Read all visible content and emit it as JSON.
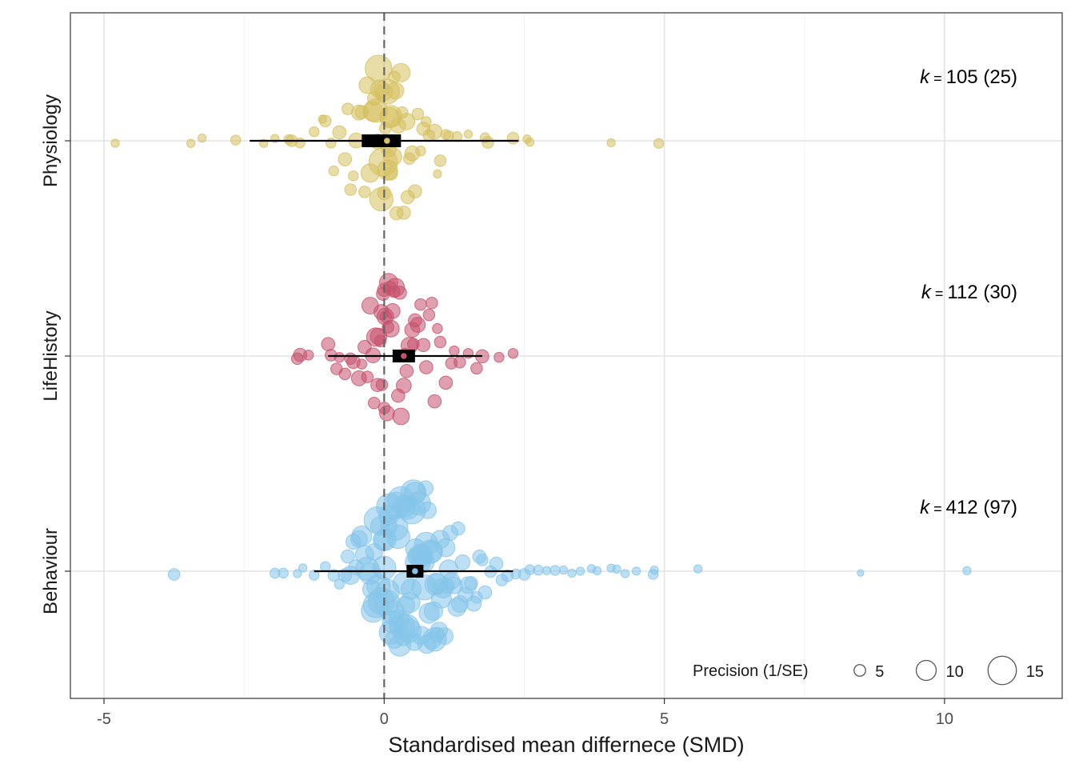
{
  "chart_data": {
    "type": "scatter",
    "subtype": "orchard-plot",
    "title": "",
    "xlabel": "Standardised mean differnece (SMD)",
    "ylabel": "",
    "xlim": [
      -5.6,
      12.1
    ],
    "x_ticks": [
      -5,
      0,
      5,
      10
    ],
    "x_tick_labels": [
      "-5",
      "0",
      "5",
      "10"
    ],
    "grid": true,
    "reference_line": {
      "x": 0,
      "style": "dashed",
      "color": "#666666"
    },
    "categories": [
      "Physiology",
      "LifeHistory",
      "Behaviour"
    ],
    "groups": [
      {
        "name": "Physiology",
        "color": "#D5BF5E",
        "k_text": "k",
        "k_eq": "=",
        "k_rest": "105",
        "k_paren": "(25)",
        "estimate": 0.05,
        "ci": [
          -0.4,
          0.3
        ],
        "pi": [
          -2.4,
          2.4
        ],
        "effects": [
          {
            "x": -4.8,
            "p": 3
          },
          {
            "x": -3.45,
            "p": 3
          },
          {
            "x": -3.25,
            "p": 3
          },
          {
            "x": -2.65,
            "p": 4
          },
          {
            "x": -2.15,
            "p": 3
          },
          {
            "x": -1.95,
            "p": 3
          },
          {
            "x": -1.7,
            "p": 4
          },
          {
            "x": -1.65,
            "p": 5
          },
          {
            "x": -1.5,
            "p": 4
          },
          {
            "x": -1.25,
            "p": 4
          },
          {
            "x": -1.05,
            "p": 5
          },
          {
            "x": -0.9,
            "p": 4
          },
          {
            "x": -0.8,
            "p": 6
          },
          {
            "x": -0.65,
            "p": 5
          },
          {
            "x": -0.5,
            "p": 7
          },
          {
            "x": -0.4,
            "p": 6
          },
          {
            "x": -0.3,
            "p": 8
          },
          {
            "x": -0.25,
            "p": 9
          },
          {
            "x": -0.2,
            "p": 10
          },
          {
            "x": -0.15,
            "p": 12
          },
          {
            "x": -0.1,
            "p": 14
          },
          {
            "x": -0.05,
            "p": 12
          },
          {
            "x": 0.0,
            "p": 8
          },
          {
            "x": 0.0,
            "p": 6
          },
          {
            "x": 0.02,
            "p": 5
          },
          {
            "x": 0.05,
            "p": 13
          },
          {
            "x": 0.08,
            "p": 7
          },
          {
            "x": 0.1,
            "p": 10
          },
          {
            "x": 0.12,
            "p": 6
          },
          {
            "x": 0.15,
            "p": 9
          },
          {
            "x": 0.18,
            "p": 5
          },
          {
            "x": 0.2,
            "p": 8
          },
          {
            "x": 0.25,
            "p": 7
          },
          {
            "x": 0.3,
            "p": 9
          },
          {
            "x": 0.35,
            "p": 6
          },
          {
            "x": 0.4,
            "p": 8
          },
          {
            "x": 0.45,
            "p": 5
          },
          {
            "x": 0.5,
            "p": 7
          },
          {
            "x": 0.55,
            "p": 6
          },
          {
            "x": 0.6,
            "p": 5
          },
          {
            "x": 0.7,
            "p": 6
          },
          {
            "x": 0.8,
            "p": 5
          },
          {
            "x": 0.9,
            "p": 7
          },
          {
            "x": 1.0,
            "p": 5
          },
          {
            "x": 1.15,
            "p": 4
          },
          {
            "x": 1.3,
            "p": 4
          },
          {
            "x": 1.5,
            "p": 3
          },
          {
            "x": 1.8,
            "p": 4
          },
          {
            "x": 1.85,
            "p": 5
          },
          {
            "x": 2.3,
            "p": 5
          },
          {
            "x": 2.55,
            "p": 3
          },
          {
            "x": 2.6,
            "p": 3
          },
          {
            "x": 4.05,
            "p": 3
          },
          {
            "x": 4.9,
            "p": 4
          },
          {
            "x": -0.35,
            "p": 5
          },
          {
            "x": -0.55,
            "p": 4
          },
          {
            "x": -0.7,
            "p": 6
          },
          {
            "x": 0.65,
            "p": 4
          },
          {
            "x": -0.12,
            "p": 7
          },
          {
            "x": 0.22,
            "p": 6
          },
          {
            "x": -0.45,
            "p": 7
          },
          {
            "x": 0.32,
            "p": 5
          },
          {
            "x": -0.08,
            "p": 9
          },
          {
            "x": 0.12,
            "p": 11
          },
          {
            "x": -0.02,
            "p": 15
          },
          {
            "x": 0.06,
            "p": 10
          },
          {
            "x": -0.18,
            "p": 6
          },
          {
            "x": 0.42,
            "p": 6
          },
          {
            "x": -0.6,
            "p": 5
          },
          {
            "x": 0.75,
            "p": 4
          },
          {
            "x": -0.95,
            "p": 4
          },
          {
            "x": 1.1,
            "p": 4
          },
          {
            "x": -1.1,
            "p": 3
          },
          {
            "x": 0.95,
            "p": 3
          }
        ]
      },
      {
        "name": "LifeHistory",
        "color": "#C4506C",
        "k_text": "k",
        "k_eq": "=",
        "k_rest": "112",
        "k_paren": "(30)",
        "estimate": 0.35,
        "ci": [
          0.15,
          0.55
        ],
        "pi": [
          -1.0,
          1.75
        ],
        "effects": [
          {
            "x": -1.55,
            "p": 5
          },
          {
            "x": -1.5,
            "p": 6
          },
          {
            "x": -1.35,
            "p": 4
          },
          {
            "x": -1.0,
            "p": 6
          },
          {
            "x": -0.95,
            "p": 5
          },
          {
            "x": -0.8,
            "p": 4
          },
          {
            "x": -0.7,
            "p": 5
          },
          {
            "x": -0.55,
            "p": 6
          },
          {
            "x": -0.45,
            "p": 7
          },
          {
            "x": -0.35,
            "p": 6
          },
          {
            "x": -0.25,
            "p": 8
          },
          {
            "x": -0.2,
            "p": 7
          },
          {
            "x": -0.15,
            "p": 9
          },
          {
            "x": -0.1,
            "p": 8
          },
          {
            "x": -0.05,
            "p": 7
          },
          {
            "x": 0.0,
            "p": 6
          },
          {
            "x": 0.0,
            "p": 5
          },
          {
            "x": 0.02,
            "p": 8
          },
          {
            "x": 0.05,
            "p": 7
          },
          {
            "x": 0.08,
            "p": 9
          },
          {
            "x": 0.1,
            "p": 6
          },
          {
            "x": 0.12,
            "p": 8
          },
          {
            "x": 0.15,
            "p": 7
          },
          {
            "x": 0.2,
            "p": 9
          },
          {
            "x": 0.25,
            "p": 6
          },
          {
            "x": 0.3,
            "p": 8
          },
          {
            "x": 0.35,
            "p": 7
          },
          {
            "x": 0.4,
            "p": 6
          },
          {
            "x": 0.45,
            "p": 8
          },
          {
            "x": 0.5,
            "p": 7
          },
          {
            "x": 0.55,
            "p": 6
          },
          {
            "x": 0.6,
            "p": 7
          },
          {
            "x": 0.7,
            "p": 6
          },
          {
            "x": 0.8,
            "p": 5
          },
          {
            "x": 0.9,
            "p": 6
          },
          {
            "x": 1.0,
            "p": 5
          },
          {
            "x": 1.1,
            "p": 6
          },
          {
            "x": 1.2,
            "p": 5
          },
          {
            "x": 1.35,
            "p": 5
          },
          {
            "x": 1.5,
            "p": 4
          },
          {
            "x": 1.65,
            "p": 5
          },
          {
            "x": 1.75,
            "p": 6
          },
          {
            "x": 2.05,
            "p": 4
          },
          {
            "x": 2.3,
            "p": 4
          },
          {
            "x": -0.6,
            "p": 5
          },
          {
            "x": -0.3,
            "p": 5
          },
          {
            "x": -0.12,
            "p": 6
          },
          {
            "x": 0.18,
            "p": 5
          },
          {
            "x": 0.28,
            "p": 6
          },
          {
            "x": 0.65,
            "p": 5
          },
          {
            "x": 0.75,
            "p": 6
          },
          {
            "x": 0.95,
            "p": 4
          },
          {
            "x": -0.85,
            "p": 5
          },
          {
            "x": 1.25,
            "p": 4
          },
          {
            "x": -0.4,
            "p": 4
          },
          {
            "x": 0.85,
            "p": 5
          },
          {
            "x": -0.02,
            "p": 6
          },
          {
            "x": 0.38,
            "p": 5
          },
          {
            "x": 0.52,
            "p": 5
          },
          {
            "x": -0.18,
            "p": 5
          },
          {
            "x": -0.07,
            "p": 5
          },
          {
            "x": 0.03,
            "p": 5
          },
          {
            "x": 0.07,
            "p": 5
          },
          {
            "x": -0.04,
            "p": 5
          }
        ]
      },
      {
        "name": "Behaviour",
        "color": "#85C4EA",
        "k_text": "k",
        "k_eq": "=",
        "k_rest": "412",
        "k_paren": "(97)",
        "estimate": 0.55,
        "ci": [
          0.4,
          0.7
        ],
        "pi": [
          -1.25,
          2.3
        ],
        "effects": [
          {
            "x": -3.75,
            "p": 5
          },
          {
            "x": -1.95,
            "p": 4
          },
          {
            "x": -1.8,
            "p": 4
          },
          {
            "x": -1.55,
            "p": 3
          },
          {
            "x": -1.45,
            "p": 3
          },
          {
            "x": -1.25,
            "p": 4
          },
          {
            "x": -1.05,
            "p": 4
          },
          {
            "x": -0.9,
            "p": 5
          },
          {
            "x": -0.8,
            "p": 4
          },
          {
            "x": -0.7,
            "p": 6
          },
          {
            "x": -0.55,
            "p": 7
          },
          {
            "x": -0.45,
            "p": 8
          },
          {
            "x": -0.35,
            "p": 9
          },
          {
            "x": -0.25,
            "p": 11
          },
          {
            "x": -0.2,
            "p": 12
          },
          {
            "x": -0.15,
            "p": 13
          },
          {
            "x": -0.1,
            "p": 12
          },
          {
            "x": -0.05,
            "p": 14
          },
          {
            "x": 0.0,
            "p": 12
          },
          {
            "x": 0.05,
            "p": 13
          },
          {
            "x": 0.1,
            "p": 14
          },
          {
            "x": 0.15,
            "p": 12
          },
          {
            "x": 0.2,
            "p": 13
          },
          {
            "x": 0.25,
            "p": 12
          },
          {
            "x": 0.3,
            "p": 14
          },
          {
            "x": 0.35,
            "p": 11
          },
          {
            "x": 0.4,
            "p": 13
          },
          {
            "x": 0.45,
            "p": 12
          },
          {
            "x": 0.5,
            "p": 14
          },
          {
            "x": 0.55,
            "p": 11
          },
          {
            "x": 0.6,
            "p": 13
          },
          {
            "x": 0.65,
            "p": 12
          },
          {
            "x": 0.7,
            "p": 11
          },
          {
            "x": 0.75,
            "p": 12
          },
          {
            "x": 0.8,
            "p": 10
          },
          {
            "x": 0.85,
            "p": 11
          },
          {
            "x": 0.9,
            "p": 12
          },
          {
            "x": 0.95,
            "p": 10
          },
          {
            "x": 1.0,
            "p": 9
          },
          {
            "x": 1.05,
            "p": 10
          },
          {
            "x": 1.1,
            "p": 9
          },
          {
            "x": 1.2,
            "p": 8
          },
          {
            "x": 1.3,
            "p": 9
          },
          {
            "x": 1.4,
            "p": 7
          },
          {
            "x": 1.5,
            "p": 8
          },
          {
            "x": 1.6,
            "p": 7
          },
          {
            "x": 1.7,
            "p": 6
          },
          {
            "x": 1.8,
            "p": 6
          },
          {
            "x": 1.9,
            "p": 5
          },
          {
            "x": 2.0,
            "p": 6
          },
          {
            "x": 2.1,
            "p": 5
          },
          {
            "x": 2.2,
            "p": 5
          },
          {
            "x": 2.35,
            "p": 4
          },
          {
            "x": 2.5,
            "p": 5
          },
          {
            "x": 2.6,
            "p": 4
          },
          {
            "x": 2.75,
            "p": 4
          },
          {
            "x": 2.9,
            "p": 3
          },
          {
            "x": 3.05,
            "p": 4
          },
          {
            "x": 3.2,
            "p": 3
          },
          {
            "x": 3.35,
            "p": 3
          },
          {
            "x": 3.5,
            "p": 3
          },
          {
            "x": 3.7,
            "p": 3
          },
          {
            "x": 3.8,
            "p": 3
          },
          {
            "x": 4.05,
            "p": 3
          },
          {
            "x": 4.15,
            "p": 3
          },
          {
            "x": 4.3,
            "p": 3
          },
          {
            "x": 4.5,
            "p": 3
          },
          {
            "x": 4.8,
            "p": 4
          },
          {
            "x": 4.82,
            "p": 3
          },
          {
            "x": 5.6,
            "p": 3
          },
          {
            "x": 8.5,
            "p": 2
          },
          {
            "x": 10.4,
            "p": 3
          },
          {
            "x": -0.6,
            "p": 9
          },
          {
            "x": -0.4,
            "p": 10
          },
          {
            "x": -0.3,
            "p": 12
          },
          {
            "x": -0.12,
            "p": 14
          },
          {
            "x": 0.02,
            "p": 11
          },
          {
            "x": 0.12,
            "p": 12
          },
          {
            "x": 0.22,
            "p": 14
          },
          {
            "x": 0.32,
            "p": 13
          },
          {
            "x": 0.42,
            "p": 12
          },
          {
            "x": 0.52,
            "p": 13
          },
          {
            "x": 0.62,
            "p": 12
          },
          {
            "x": 0.72,
            "p": 13
          },
          {
            "x": 0.82,
            "p": 12
          },
          {
            "x": 0.92,
            "p": 11
          },
          {
            "x": 1.02,
            "p": 10
          },
          {
            "x": 1.15,
            "p": 9
          },
          {
            "x": 1.25,
            "p": 8
          },
          {
            "x": 1.35,
            "p": 8
          },
          {
            "x": 1.45,
            "p": 7
          },
          {
            "x": 1.55,
            "p": 6
          },
          {
            "x": -0.5,
            "p": 7
          },
          {
            "x": -0.22,
            "p": 9
          },
          {
            "x": 0.08,
            "p": 10
          },
          {
            "x": 0.28,
            "p": 11
          },
          {
            "x": 0.48,
            "p": 10
          },
          {
            "x": 0.68,
            "p": 10
          },
          {
            "x": 0.88,
            "p": 9
          },
          {
            "x": 1.08,
            "p": 8
          },
          {
            "x": 1.65,
            "p": 5
          },
          {
            "x": 1.75,
            "p": 5
          },
          {
            "x": -0.65,
            "p": 6
          },
          {
            "x": -0.08,
            "p": 9
          },
          {
            "x": 0.18,
            "p": 9
          },
          {
            "x": 0.38,
            "p": 9
          },
          {
            "x": 0.58,
            "p": 9
          },
          {
            "x": 0.78,
            "p": 8
          },
          {
            "x": 0.98,
            "p": 8
          },
          {
            "x": 1.18,
            "p": 7
          },
          {
            "x": -0.18,
            "p": 8
          },
          {
            "x": 0.08,
            "p": 8
          },
          {
            "x": 0.34,
            "p": 8
          },
          {
            "x": 0.54,
            "p": 8
          },
          {
            "x": 0.74,
            "p": 7
          },
          {
            "x": 0.94,
            "p": 7
          },
          {
            "x": -0.02,
            "p": 10
          },
          {
            "x": 0.26,
            "p": 10
          },
          {
            "x": 0.46,
            "p": 10
          },
          {
            "x": 0.66,
            "p": 9
          },
          {
            "x": 0.86,
            "p": 8
          },
          {
            "x": 1.12,
            "p": 7
          },
          {
            "x": 1.32,
            "p": 6
          },
          {
            "x": 0.16,
            "p": 11
          },
          {
            "x": 0.36,
            "p": 11
          },
          {
            "x": 0.56,
            "p": 10
          },
          {
            "x": 0.76,
            "p": 9
          },
          {
            "x": 0.06,
            "p": 12
          }
        ]
      }
    ],
    "legend": {
      "title": "Precision (1/SE)",
      "position": "bottom-right",
      "items": [
        {
          "label": "5",
          "value": 5
        },
        {
          "label": "10",
          "value": 10
        },
        {
          "label": "15",
          "value": 15
        }
      ]
    }
  }
}
